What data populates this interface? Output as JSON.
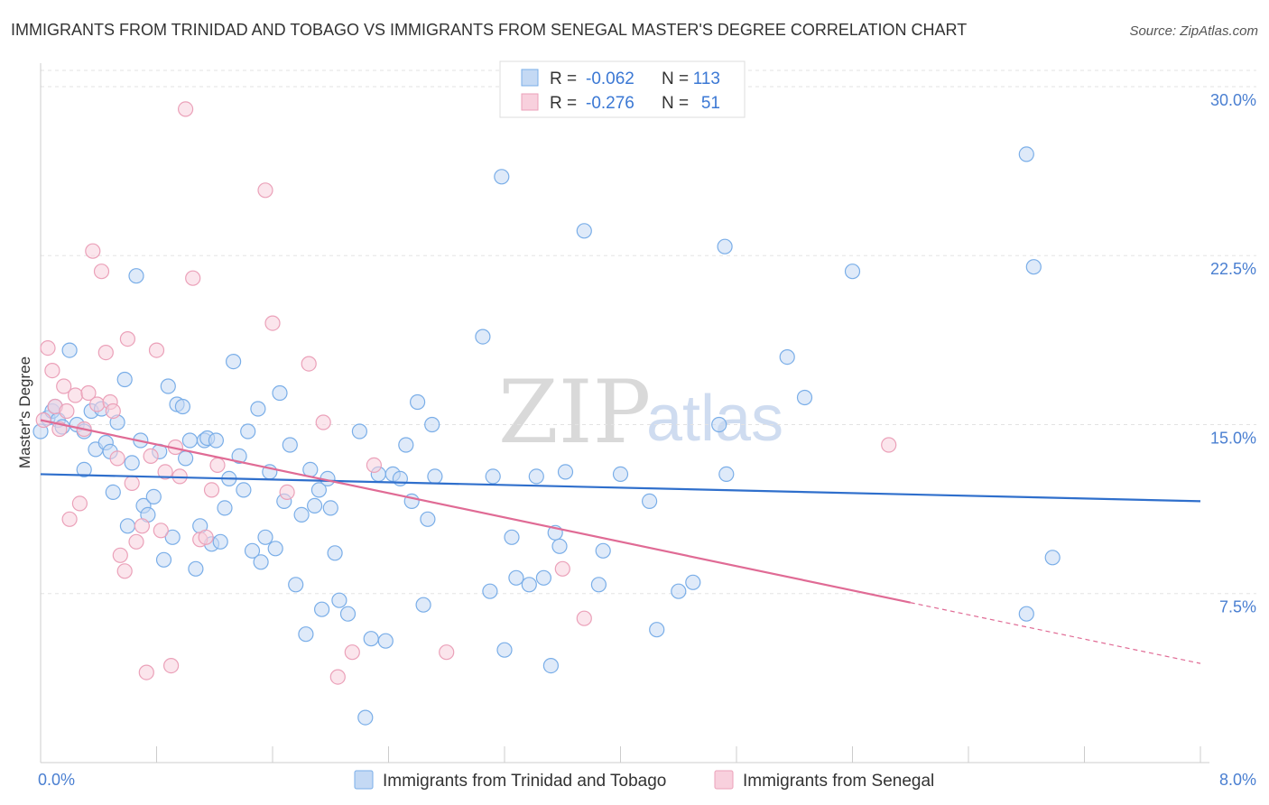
{
  "title": "IMMIGRANTS FROM TRINIDAD AND TOBAGO VS IMMIGRANTS FROM SENEGAL MASTER'S DEGREE CORRELATION CHART",
  "source": "Source: ZipAtlas.com",
  "watermark": {
    "zip": "ZIP",
    "atlas": "atlas"
  },
  "legend_box": {
    "rows": [
      {
        "r_label": "R =",
        "r_value": "-0.062",
        "n_label": "N =",
        "n_value": "113"
      },
      {
        "r_label": "R =",
        "r_value": "-0.276",
        "n_label": "N =",
        "n_value": "51"
      }
    ]
  },
  "chart_data": {
    "type": "scatter",
    "title": "IMMIGRANTS FROM TRINIDAD AND TOBAGO VS IMMIGRANTS FROM SENEGAL MASTER'S DEGREE CORRELATION CHART",
    "xlabel": "",
    "ylabel": "Master's Degree",
    "xlim": [
      0,
      8
    ],
    "ylim": [
      0,
      31
    ],
    "x_tick_labels": [
      "0.0%",
      "8.0%"
    ],
    "y_ticks": [
      7.5,
      15.0,
      22.5,
      30.0
    ],
    "y_tick_labels": [
      "7.5%",
      "15.0%",
      "22.5%",
      "30.0%"
    ],
    "grid": "horizontal dashed",
    "legend_position": "bottom-center",
    "series": [
      {
        "name": "Immigrants from Trinidad and Tobago",
        "color": "#7aaee8",
        "fill": "#c4d9f4",
        "r": -0.062,
        "n": 113,
        "trend": {
          "x0": 0,
          "y0": 12.8,
          "x1": 8,
          "y1": 11.6,
          "x_solid_end": 8
        },
        "points": [
          [
            0.0,
            14.7
          ],
          [
            0.05,
            15.3
          ],
          [
            0.08,
            15.6
          ],
          [
            0.1,
            15.8
          ],
          [
            0.12,
            15.2
          ],
          [
            0.15,
            14.9
          ],
          [
            0.2,
            18.3
          ],
          [
            0.25,
            15.0
          ],
          [
            0.3,
            13.0
          ],
          [
            0.3,
            14.7
          ],
          [
            0.35,
            15.6
          ],
          [
            0.38,
            13.9
          ],
          [
            0.42,
            15.7
          ],
          [
            0.45,
            14.2
          ],
          [
            0.48,
            13.8
          ],
          [
            0.5,
            12.0
          ],
          [
            0.53,
            15.1
          ],
          [
            0.58,
            17.0
          ],
          [
            0.6,
            10.5
          ],
          [
            0.63,
            13.3
          ],
          [
            0.66,
            21.6
          ],
          [
            0.69,
            14.3
          ],
          [
            0.71,
            11.4
          ],
          [
            0.74,
            11.0
          ],
          [
            0.78,
            11.8
          ],
          [
            0.82,
            13.8
          ],
          [
            0.85,
            9.0
          ],
          [
            0.88,
            16.7
          ],
          [
            0.91,
            10.0
          ],
          [
            0.94,
            15.9
          ],
          [
            0.98,
            15.8
          ],
          [
            1.0,
            13.5
          ],
          [
            1.03,
            14.3
          ],
          [
            1.07,
            8.6
          ],
          [
            1.1,
            10.5
          ],
          [
            1.13,
            14.3
          ],
          [
            1.15,
            14.4
          ],
          [
            1.18,
            9.7
          ],
          [
            1.21,
            14.3
          ],
          [
            1.24,
            9.8
          ],
          [
            1.27,
            11.3
          ],
          [
            1.3,
            12.6
          ],
          [
            1.33,
            17.8
          ],
          [
            1.37,
            13.6
          ],
          [
            1.4,
            12.1
          ],
          [
            1.43,
            14.7
          ],
          [
            1.46,
            9.4
          ],
          [
            1.5,
            15.7
          ],
          [
            1.52,
            8.9
          ],
          [
            1.55,
            10.0
          ],
          [
            1.58,
            12.9
          ],
          [
            1.62,
            9.5
          ],
          [
            1.65,
            16.4
          ],
          [
            1.68,
            11.6
          ],
          [
            1.72,
            14.1
          ],
          [
            1.76,
            7.9
          ],
          [
            1.8,
            11.0
          ],
          [
            1.83,
            5.7
          ],
          [
            1.86,
            13.0
          ],
          [
            1.89,
            11.4
          ],
          [
            1.92,
            12.1
          ],
          [
            1.94,
            6.8
          ],
          [
            1.98,
            12.6
          ],
          [
            2.0,
            11.3
          ],
          [
            2.03,
            9.3
          ],
          [
            2.06,
            7.2
          ],
          [
            2.12,
            6.6
          ],
          [
            2.2,
            14.7
          ],
          [
            2.24,
            2.0
          ],
          [
            2.28,
            5.5
          ],
          [
            2.33,
            12.8
          ],
          [
            2.38,
            5.4
          ],
          [
            2.43,
            12.8
          ],
          [
            2.48,
            12.6
          ],
          [
            2.52,
            14.1
          ],
          [
            2.56,
            11.6
          ],
          [
            2.6,
            16.0
          ],
          [
            2.64,
            7.0
          ],
          [
            2.67,
            10.8
          ],
          [
            2.7,
            15.0
          ],
          [
            2.72,
            12.7
          ],
          [
            3.05,
            18.9
          ],
          [
            3.1,
            7.6
          ],
          [
            3.12,
            12.7
          ],
          [
            3.18,
            26.0
          ],
          [
            3.2,
            5.0
          ],
          [
            3.25,
            10.0
          ],
          [
            3.28,
            8.2
          ],
          [
            3.37,
            7.9
          ],
          [
            3.42,
            12.7
          ],
          [
            3.47,
            8.2
          ],
          [
            3.52,
            4.3
          ],
          [
            3.55,
            10.2
          ],
          [
            3.58,
            9.6
          ],
          [
            3.62,
            12.9
          ],
          [
            3.75,
            23.6
          ],
          [
            3.85,
            7.9
          ],
          [
            3.88,
            9.4
          ],
          [
            4.0,
            12.8
          ],
          [
            4.2,
            11.6
          ],
          [
            4.25,
            5.9
          ],
          [
            4.4,
            7.6
          ],
          [
            4.5,
            8.0
          ],
          [
            4.68,
            15.0
          ],
          [
            4.72,
            22.9
          ],
          [
            4.73,
            12.8
          ],
          [
            5.15,
            18.0
          ],
          [
            5.27,
            16.2
          ],
          [
            5.6,
            21.8
          ],
          [
            6.8,
            27.0
          ],
          [
            6.8,
            6.6
          ],
          [
            6.98,
            9.1
          ],
          [
            6.85,
            22.0
          ]
        ]
      },
      {
        "name": "Immigrants from Senegal",
        "color": "#eba1b9",
        "fill": "#f8d0dd",
        "r": -0.276,
        "n": 51,
        "trend": {
          "x0": 0,
          "y0": 15.2,
          "x1": 8,
          "y1": 4.4,
          "x_solid_end": 6.0
        },
        "points": [
          [
            0.02,
            15.2
          ],
          [
            0.05,
            18.4
          ],
          [
            0.08,
            17.4
          ],
          [
            0.1,
            15.8
          ],
          [
            0.13,
            14.8
          ],
          [
            0.16,
            16.7
          ],
          [
            0.18,
            15.6
          ],
          [
            0.2,
            10.8
          ],
          [
            0.24,
            16.3
          ],
          [
            0.27,
            11.5
          ],
          [
            0.3,
            14.8
          ],
          [
            0.33,
            16.4
          ],
          [
            0.36,
            22.7
          ],
          [
            0.39,
            15.9
          ],
          [
            0.42,
            21.8
          ],
          [
            0.45,
            18.2
          ],
          [
            0.48,
            16.0
          ],
          [
            0.5,
            15.6
          ],
          [
            0.53,
            13.5
          ],
          [
            0.55,
            9.2
          ],
          [
            0.58,
            8.5
          ],
          [
            0.6,
            18.8
          ],
          [
            0.63,
            12.4
          ],
          [
            0.66,
            9.8
          ],
          [
            0.7,
            10.5
          ],
          [
            0.73,
            4.0
          ],
          [
            0.76,
            13.6
          ],
          [
            0.8,
            18.3
          ],
          [
            0.83,
            10.3
          ],
          [
            0.86,
            12.9
          ],
          [
            0.9,
            4.3
          ],
          [
            0.93,
            14.0
          ],
          [
            0.96,
            12.7
          ],
          [
            1.0,
            29.0
          ],
          [
            1.05,
            21.5
          ],
          [
            1.1,
            9.9
          ],
          [
            1.14,
            10.0
          ],
          [
            1.18,
            12.1
          ],
          [
            1.22,
            13.2
          ],
          [
            1.55,
            25.4
          ],
          [
            1.6,
            19.5
          ],
          [
            1.7,
            12.0
          ],
          [
            1.85,
            17.7
          ],
          [
            1.95,
            15.1
          ],
          [
            2.05,
            3.8
          ],
          [
            2.15,
            4.9
          ],
          [
            2.3,
            13.2
          ],
          [
            2.8,
            4.9
          ],
          [
            3.6,
            8.6
          ],
          [
            3.75,
            6.4
          ],
          [
            5.85,
            14.1
          ]
        ]
      }
    ]
  }
}
